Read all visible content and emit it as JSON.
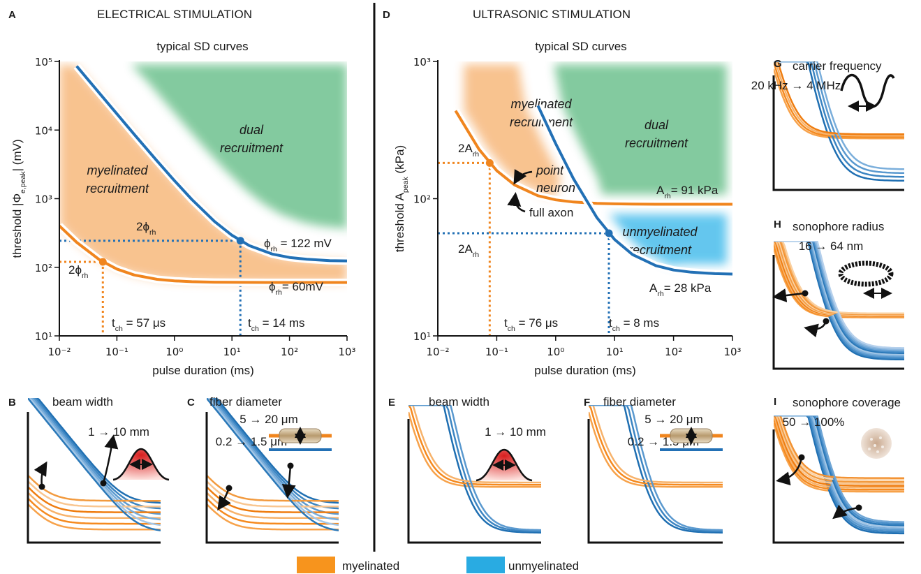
{
  "header": {
    "left": "ELECTRICAL STIMULATION",
    "right": "ULTRASONIC STIMULATION"
  },
  "chart_data": [
    {
      "type": "line",
      "letter": "A",
      "title": "typical SD curves",
      "xlabel": "pulse duration (ms)",
      "ylabel": {
        "text": "threshold |Φ",
        "sub": "e,peak",
        "tail": "| (mV)"
      },
      "log_x": true,
      "log_y": true,
      "xlim": [
        0.01,
        1000
      ],
      "ylim": [
        10,
        100000
      ],
      "xticks": [
        {
          "value": 0.01,
          "label": "10⁻²"
        },
        {
          "value": 0.1,
          "label": "10⁻¹"
        },
        {
          "value": 1,
          "label": "10⁰"
        },
        {
          "value": 10,
          "label": "10¹"
        },
        {
          "value": 100,
          "label": "10²"
        },
        {
          "value": 1000,
          "label": "10³"
        }
      ],
      "yticks": [
        {
          "value": 10,
          "label": "10¹"
        },
        {
          "value": 100,
          "label": "10²"
        },
        {
          "value": 1000,
          "label": "10³"
        },
        {
          "value": 10000,
          "label": "10⁴"
        },
        {
          "value": 100000,
          "label": "10⁵"
        }
      ],
      "x": [
        0.01,
        0.02,
        0.05,
        0.1,
        0.2,
        0.5,
        1,
        2,
        5,
        10,
        20,
        50,
        100,
        200,
        500,
        1000
      ],
      "series": [
        {
          "color": "#f0851e",
          "values": [
            402,
            231,
            128.4,
            94.2,
            77.1,
            66.8,
            63.4,
            61.7,
            60.7,
            60.3,
            60.2,
            60.1,
            60,
            60,
            60,
            60
          ]
        },
        {
          "color": "#2270b5",
          "values": [
            null,
            85522,
            34282,
            17202,
            8662,
            3538,
            1830,
            976,
            464,
            293,
            207,
            156,
            139,
            131,
            125,
            124
          ]
        }
      ],
      "regions": [
        {
          "lines": [
            "myelinated",
            "recruitment"
          ]
        },
        {
          "lines": [
            "dual",
            "recruitment"
          ]
        }
      ],
      "annotations": [
        {
          "x": 0.057,
          "y": 120,
          "color": "#f0851e",
          "ylabel": {
            "text": "2ϕ",
            "sub": "rh"
          },
          "xlabel": {
            "text": "t",
            "sub": "ch",
            "tail": " = 57 μs"
          },
          "rh_label": {
            "text": "ϕ",
            "sub": "rh",
            "tail": "= 60mV"
          }
        },
        {
          "x": 14,
          "y": 244,
          "color": "#2270b5",
          "ylabel": {
            "text": "2ϕ",
            "sub": "rh"
          },
          "xlabel": {
            "text": "t",
            "sub": "ch",
            "tail": " = 14 ms"
          },
          "rh_label": {
            "text": "ϕ",
            "sub": "rh",
            "tail": " = 122 mV"
          }
        }
      ]
    },
    {
      "type": "line",
      "letter": "D",
      "title": "typical SD curves",
      "xlabel": "pulse duration (ms)",
      "ylabel": {
        "text": "threshold A",
        "sub": "peak",
        "tail": "  (kPa)"
      },
      "log_x": true,
      "log_y": true,
      "xlim": [
        0.01,
        1000
      ],
      "ylim": [
        10,
        1000
      ],
      "xticks": [
        {
          "value": 0.01,
          "label": "10⁻²"
        },
        {
          "value": 0.1,
          "label": "10⁻¹"
        },
        {
          "value": 1,
          "label": "10⁰"
        },
        {
          "value": 10,
          "label": "10¹"
        },
        {
          "value": 100,
          "label": "10²"
        },
        {
          "value": 1000,
          "label": "10³"
        }
      ],
      "yticks": [
        {
          "value": 10,
          "label": "10¹"
        },
        {
          "value": 100,
          "label": "10²"
        },
        {
          "value": 1000,
          "label": "10³"
        }
      ],
      "x": [
        0.01,
        0.02,
        0.05,
        0.1,
        0.2,
        0.5,
        1,
        2,
        5,
        10,
        20,
        50,
        100,
        200,
        500,
        1000
      ],
      "series": [
        {
          "color": "#f0851e",
          "values": [
            null,
            437,
            229,
            160,
            126,
            105,
            98,
            94.5,
            92.4,
            91.7,
            91.3,
            91.1,
            91,
            91,
            91,
            91
          ]
        },
        {
          "color": "#2270b5",
          "values": [
            null,
            null,
            null,
            null,
            null,
            476,
            252,
            140,
            72.8,
            50.4,
            39.2,
            32.5,
            30.2,
            29.1,
            28.4,
            28.2
          ]
        }
      ],
      "regions": [
        {
          "lines": [
            "myelinated",
            "recruitment"
          ]
        },
        {
          "lines": [
            "dual",
            "recruitment"
          ]
        },
        {
          "lines": [
            "unmyelinated",
            "recruitment"
          ]
        }
      ],
      "notes": [
        {
          "lines": [
            "point",
            "neuron"
          ]
        },
        {
          "lines": [
            "full axon"
          ]
        }
      ],
      "annotations": [
        {
          "x": 0.076,
          "y": 182,
          "color": "#f0851e",
          "ylabel": {
            "text": "2A",
            "sub": "rh"
          },
          "xlabel": {
            "text": "t",
            "sub": "ch",
            "tail": " = 76 μs"
          },
          "rh_label": {
            "text": "A",
            "sub": "rh",
            "tail": "= 91 kPa"
          }
        },
        {
          "x": 8,
          "y": 56,
          "color": "#2270b5",
          "ylabel": {
            "text": "2A",
            "sub": "rh"
          },
          "xlabel": {
            "text": "t",
            "sub": "ch",
            "tail": " = 8 ms"
          },
          "rh_label": {
            "text": "A",
            "sub": "rh",
            "tail": "= 28 kPa"
          }
        }
      ]
    }
  ],
  "panels": [
    {
      "letter": "B",
      "title": "beam width",
      "ranges": [
        {
          "text": "1 → 10 mm",
          "color": "#1a1a1a"
        }
      ]
    },
    {
      "letter": "C",
      "title": "fiber diameter",
      "ranges": [
        {
          "text": "5 → 20 μm",
          "color": "#f0851e"
        },
        {
          "text": "0.2 → 1.5 μm",
          "color": "#2270b5"
        }
      ]
    },
    {
      "letter": "E",
      "title": "beam width",
      "ranges": [
        {
          "text": "1 → 10 mm",
          "color": "#1a1a1a"
        }
      ]
    },
    {
      "letter": "F",
      "title": "fiber diameter",
      "ranges": [
        {
          "text": "5 → 20 μm",
          "color": "#f0851e"
        },
        {
          "text": "0.2 → 1.5 μm",
          "color": "#2270b5"
        }
      ]
    },
    {
      "letter": "G",
      "title": "carrier frequency",
      "ranges": [
        {
          "text": "20 kHz → 4 MHz",
          "color": "#1a1a1a"
        }
      ]
    },
    {
      "letter": "H",
      "title": "sonophore radius",
      "ranges": [
        {
          "text": "16 → 64 nm",
          "color": "#1a1a1a"
        }
      ]
    },
    {
      "letter": "I",
      "title": "sonophore coverage",
      "ranges": [
        {
          "text": "50 → 100%",
          "color": "#1a1a1a"
        }
      ]
    }
  ],
  "legend": [
    {
      "name": "myelinated",
      "color": "#f7941d"
    },
    {
      "name": "unmyelinated",
      "color": "#29abe2"
    }
  ]
}
